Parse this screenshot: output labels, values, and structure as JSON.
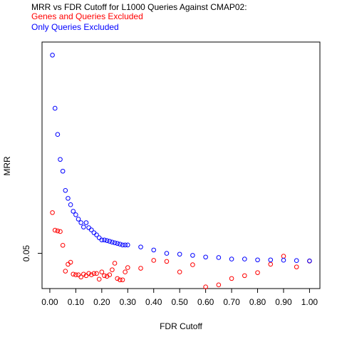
{
  "chart_data": {
    "type": "scatter",
    "title": "MRR vs FDR Cutoff for L1000 Queries Against CMAP02:",
    "xlabel": "FDR Cutoff",
    "ylabel": "MRR",
    "xlim": [
      -0.03,
      1.04
    ],
    "ylim": [
      0.029,
      0.176
    ],
    "x_ticks": [
      0.0,
      0.1,
      0.2,
      0.3,
      0.4,
      0.5,
      0.6,
      0.7,
      0.8,
      0.9,
      1.0
    ],
    "x_tick_labels": [
      "0.00",
      "0.10",
      "0.20",
      "0.30",
      "0.40",
      "0.50",
      "0.60",
      "0.70",
      "0.80",
      "0.90",
      "1.00"
    ],
    "y_ticks": [
      0.05
    ],
    "y_tick_labels": [
      "0.05"
    ],
    "grid": false,
    "legend": "top-left",
    "series": [
      {
        "name": "Genes and Queries Excluded",
        "color": "#ff0000",
        "points": [
          [
            0.01,
            0.0743
          ],
          [
            0.02,
            0.0638
          ],
          [
            0.03,
            0.0634
          ],
          [
            0.04,
            0.063
          ],
          [
            0.05,
            0.0548
          ],
          [
            0.06,
            0.0394
          ],
          [
            0.07,
            0.0435
          ],
          [
            0.08,
            0.0447
          ],
          [
            0.09,
            0.0376
          ],
          [
            0.1,
            0.0372
          ],
          [
            0.11,
            0.0372
          ],
          [
            0.12,
            0.0359
          ],
          [
            0.13,
            0.0376
          ],
          [
            0.14,
            0.0367
          ],
          [
            0.15,
            0.038
          ],
          [
            0.16,
            0.0372
          ],
          [
            0.17,
            0.038
          ],
          [
            0.18,
            0.038
          ],
          [
            0.19,
            0.0346
          ],
          [
            0.2,
            0.0389
          ],
          [
            0.21,
            0.0367
          ],
          [
            0.22,
            0.0363
          ],
          [
            0.23,
            0.0372
          ],
          [
            0.24,
            0.0402
          ],
          [
            0.25,
            0.0441
          ],
          [
            0.26,
            0.035
          ],
          [
            0.27,
            0.0342
          ],
          [
            0.28,
            0.0342
          ],
          [
            0.29,
            0.0389
          ],
          [
            0.3,
            0.0415
          ],
          [
            0.35,
            0.0411
          ],
          [
            0.4,
            0.0458
          ],
          [
            0.45,
            0.0452
          ],
          [
            0.5,
            0.0389
          ],
          [
            0.55,
            0.0432
          ],
          [
            0.6,
            0.03
          ],
          [
            0.65,
            0.0312
          ],
          [
            0.7,
            0.035
          ],
          [
            0.75,
            0.0367
          ],
          [
            0.8,
            0.0385
          ],
          [
            0.85,
            0.0435
          ],
          [
            0.9,
            0.0483
          ],
          [
            0.95,
            0.0419
          ],
          [
            1.0,
            0.0454
          ]
        ]
      },
      {
        "name": "Only Queries Excluded",
        "color": "#0000ff",
        "points": [
          [
            0.01,
            0.1682
          ],
          [
            0.02,
            0.1365
          ],
          [
            0.03,
            0.1209
          ],
          [
            0.04,
            0.106
          ],
          [
            0.05,
            0.099
          ],
          [
            0.06,
            0.0875
          ],
          [
            0.07,
            0.0828
          ],
          [
            0.08,
            0.079
          ],
          [
            0.09,
            0.0751
          ],
          [
            0.1,
            0.073
          ],
          [
            0.11,
            0.0704
          ],
          [
            0.12,
            0.0683
          ],
          [
            0.13,
            0.0657
          ],
          [
            0.14,
            0.0683
          ],
          [
            0.15,
            0.0653
          ],
          [
            0.16,
            0.064
          ],
          [
            0.17,
            0.0623
          ],
          [
            0.18,
            0.061
          ],
          [
            0.19,
            0.0593
          ],
          [
            0.2,
            0.058
          ],
          [
            0.21,
            0.058
          ],
          [
            0.22,
            0.0576
          ],
          [
            0.23,
            0.0572
          ],
          [
            0.24,
            0.0567
          ],
          [
            0.25,
            0.0563
          ],
          [
            0.26,
            0.0559
          ],
          [
            0.27,
            0.0555
          ],
          [
            0.28,
            0.055
          ],
          [
            0.29,
            0.055
          ],
          [
            0.3,
            0.055
          ],
          [
            0.35,
            0.0538
          ],
          [
            0.4,
            0.052
          ],
          [
            0.45,
            0.05
          ],
          [
            0.5,
            0.0495
          ],
          [
            0.55,
            0.0488
          ],
          [
            0.6,
            0.0478
          ],
          [
            0.65,
            0.0475
          ],
          [
            0.7,
            0.0466
          ],
          [
            0.75,
            0.0466
          ],
          [
            0.8,
            0.0461
          ],
          [
            0.85,
            0.0461
          ],
          [
            0.9,
            0.0459
          ],
          [
            0.95,
            0.0457
          ],
          [
            1.0,
            0.0455
          ]
        ]
      }
    ]
  }
}
